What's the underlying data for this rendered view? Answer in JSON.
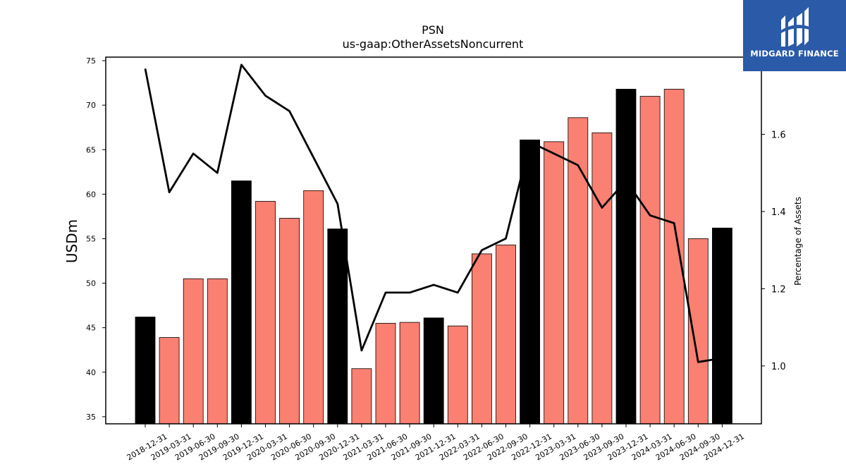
{
  "chart_data": {
    "type": "bar",
    "title": "PSN",
    "subtitle": "us-gaap:OtherAssetsNoncurrent",
    "ylabel": "USDm",
    "y2label": "Percentage of Assets",
    "ylim": [
      34.2,
      75.4
    ],
    "y2lim": [
      0.85,
      1.8
    ],
    "yticks": [
      35,
      40,
      45,
      50,
      55,
      60,
      65,
      70,
      75
    ],
    "y2ticks": [
      1.0,
      1.2,
      1.4,
      1.6
    ],
    "categories": [
      "2018-12-31",
      "2019-03-31",
      "2019-06-30",
      "2019-09-30",
      "2019-12-31",
      "2020-03-31",
      "2020-06-30",
      "2020-09-30",
      "2020-12-31",
      "2021-03-31",
      "2021-06-30",
      "2021-09-30",
      "2021-12-31",
      "2022-03-31",
      "2022-06-30",
      "2022-09-30",
      "2022-12-31",
      "2023-03-31",
      "2023-06-30",
      "2023-09-30",
      "2023-12-31",
      "2024-03-31",
      "2024-06-30",
      "2024-09-30",
      "2024-12-31"
    ],
    "values": [
      46.2,
      43.9,
      50.5,
      50.5,
      61.5,
      59.2,
      57.3,
      60.4,
      56.1,
      40.4,
      45.5,
      45.6,
      46.1,
      45.2,
      53.3,
      54.3,
      66.1,
      65.9,
      68.6,
      66.9,
      71.8,
      71.0,
      71.8,
      55.0,
      56.2
    ],
    "highlight": [
      true,
      false,
      false,
      false,
      true,
      false,
      false,
      false,
      true,
      false,
      false,
      false,
      true,
      false,
      false,
      false,
      true,
      false,
      false,
      false,
      true,
      false,
      false,
      false,
      true
    ],
    "line_values": [
      1.77,
      1.45,
      1.55,
      1.5,
      1.78,
      1.7,
      1.66,
      1.54,
      1.42,
      1.04,
      1.19,
      1.19,
      1.21,
      1.19,
      1.3,
      1.33,
      1.58,
      1.55,
      1.52,
      1.41,
      1.48,
      1.39,
      1.37,
      1.01,
      1.02
    ],
    "bar_color": "#fa8072",
    "highlight_color": "#000000",
    "line_color": "#000000",
    "grid": false
  },
  "logo": {
    "text": "MIDGARD FINANCE",
    "bg_color": "#2a5aa8"
  }
}
